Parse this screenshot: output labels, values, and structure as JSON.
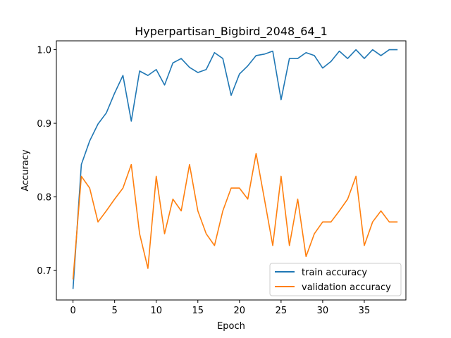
{
  "chart_data": {
    "type": "line",
    "title": "Hyperpartisan_Bigbird_2048_64_1",
    "xlabel": "Epoch",
    "ylabel": "Accuracy",
    "xlim": [
      -2,
      40
    ],
    "ylim": [
      0.66,
      1.012
    ],
    "xticks": [
      0,
      5,
      10,
      15,
      20,
      25,
      30,
      35
    ],
    "yticks": [
      0.7,
      0.8,
      0.9,
      1.0
    ],
    "ytick_labels": [
      "0.7",
      "0.8",
      "0.9",
      "1.0"
    ],
    "legend_position": "lower-right",
    "grid": false,
    "x": [
      0,
      1,
      2,
      3,
      4,
      5,
      6,
      7,
      8,
      9,
      10,
      11,
      12,
      13,
      14,
      15,
      16,
      17,
      18,
      19,
      20,
      21,
      22,
      23,
      24,
      25,
      26,
      27,
      28,
      29,
      30,
      31,
      32,
      33,
      34,
      35,
      36,
      37,
      38,
      39
    ],
    "series": [
      {
        "name": "train accuracy",
        "color": "#1f77b4",
        "values": [
          0.675,
          0.844,
          0.876,
          0.899,
          0.914,
          0.941,
          0.965,
          0.903,
          0.971,
          0.965,
          0.973,
          0.952,
          0.982,
          0.988,
          0.976,
          0.969,
          0.973,
          0.996,
          0.988,
          0.938,
          0.967,
          0.978,
          0.992,
          0.994,
          0.998,
          0.932,
          0.988,
          0.988,
          0.996,
          0.992,
          0.975,
          0.984,
          0.998,
          0.988,
          1.0,
          0.988,
          1.0,
          0.992,
          1.0,
          1.0
        ]
      },
      {
        "name": "validation accuracy",
        "color": "#ff7f0e",
        "values": [
          0.688,
          0.828,
          0.812,
          0.766,
          0.781,
          0.797,
          0.812,
          0.844,
          0.75,
          0.703,
          0.828,
          0.75,
          0.797,
          0.781,
          0.844,
          0.781,
          0.75,
          0.734,
          0.781,
          0.812,
          0.812,
          0.797,
          0.859,
          0.797,
          0.734,
          0.828,
          0.734,
          0.797,
          0.719,
          0.75,
          0.766,
          0.766,
          0.781,
          0.797,
          0.828,
          0.734,
          0.766,
          0.781,
          0.766,
          0.766
        ]
      }
    ]
  }
}
